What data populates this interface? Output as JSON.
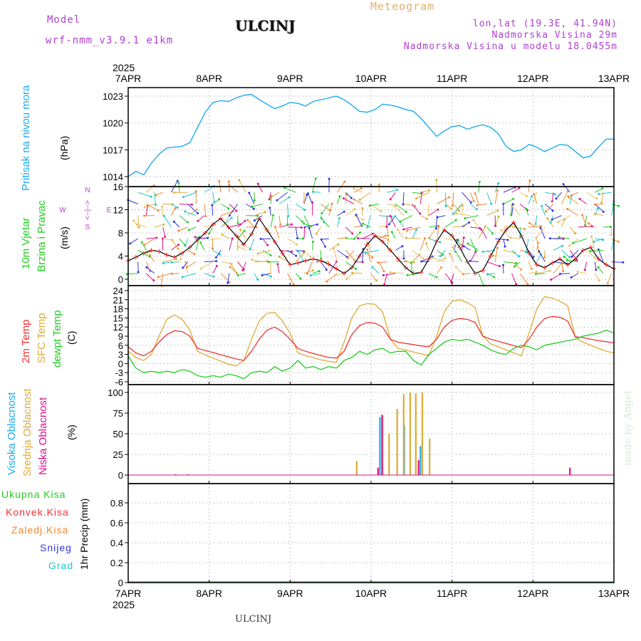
{
  "header": {
    "model_label": "Model",
    "model_name": "wrf-nmm_v3.9.1  e1km",
    "station": "ULCINJ",
    "title": "Meteogram",
    "lonlat": "lon,lat (19.3E, 41.94N)",
    "elevation": "Nadmorska Visina 29m",
    "model_elevation": "Nadmorska Visina u modelu 18.0455m"
  },
  "footer": {
    "station": "ULCINJ",
    "credit": "made by Angel"
  },
  "colors": {
    "pressure": "#1eaaee",
    "temp2m": "#ee3333",
    "sfc": "#e0aa33",
    "dewpt": "#22cc22",
    "wind_green": "#22cc22",
    "purple": "#b040d0",
    "cyan": "#22c8c8",
    "magenta": "#dd1188",
    "blue": "#3333dd",
    "orange": "#ee8833"
  },
  "chart_data": [
    {
      "type": "line",
      "ylabel": "Pritisak na nivou mora",
      "unit": "(hPa)",
      "x_ticks": [
        "7APR",
        "8APR",
        "9APR",
        "10APR",
        "11APR",
        "12APR",
        "13APR"
      ],
      "year": "2025",
      "yticks": [
        "1014",
        "1017",
        "1020",
        "1023"
      ],
      "ylim": [
        1013.4,
        1023.5
      ],
      "grid": true,
      "series": [
        {
          "values": [
            1014.0,
            1014.6,
            1014.2,
            1015.5,
            1016.5,
            1017.2,
            1017.3,
            1017.4,
            1017.8,
            1019.5,
            1021.2,
            1022.3,
            1022.5,
            1022.4,
            1022.8,
            1023.1,
            1023.2,
            1022.6,
            1022.1,
            1021.6,
            1021.9,
            1022.3,
            1022.2,
            1021.9,
            1022.4,
            1022.6,
            1022.8,
            1023.0,
            1022.6,
            1022.0,
            1021.3,
            1021.2,
            1021.5,
            1022.1,
            1022.0,
            1021.8,
            1021.5,
            1021.3,
            1020.5,
            1019.5,
            1018.5,
            1019.1,
            1019.6,
            1019.7,
            1019.3,
            1019.6,
            1019.8,
            1019.5,
            1018.8,
            1017.4,
            1016.8,
            1017.0,
            1017.6,
            1017.3,
            1016.8,
            1017.2,
            1017.6,
            1017.5,
            1016.8,
            1016.1,
            1016.3,
            1017.3,
            1018.2,
            1018.2
          ]
        }
      ]
    },
    {
      "type": "line",
      "ylabel": [
        "10m Vjetar",
        "Brzina i Pravac"
      ],
      "unit": "(m/s)",
      "compass": [
        "N",
        "W",
        "<--|-->",
        "E",
        "S"
      ],
      "yticks": [
        "0",
        "4",
        "8",
        "12",
        "16"
      ],
      "ylim": [
        0,
        16
      ],
      "grid": true,
      "series": [
        {
          "values": [
            3.2,
            3.8,
            4.5,
            5.0,
            4.8,
            4.2,
            3.8,
            4.5,
            5.5,
            6.8,
            8.0,
            9.5,
            10.5,
            9.0,
            7.5,
            6.0,
            7.8,
            10.5,
            8.5,
            6.5,
            4.5,
            2.5,
            2.8,
            3.2,
            3.5,
            3.2,
            2.6,
            1.8,
            1.0,
            2.0,
            4.0,
            6.0,
            7.5,
            6.5,
            5.0,
            3.5,
            2.0,
            1.0,
            1.2,
            3.5,
            6.5,
            8.5,
            7.5,
            5.5,
            3.0,
            1.0,
            1.5,
            4.0,
            6.5,
            8.5,
            9.8,
            7.5,
            4.5,
            2.5,
            2.0,
            2.8,
            3.5,
            2.5,
            3.5,
            5.0,
            5.5,
            3.5,
            2.5,
            1.8
          ]
        }
      ]
    },
    {
      "type": "line",
      "ylabel": [
        "2m Temp",
        "SFC Temp",
        "dewpt Temp"
      ],
      "unit": "(C)",
      "yticks": [
        "-6",
        "-3",
        "0",
        "3",
        "6",
        "9",
        "12",
        "15",
        "18",
        "21",
        "24"
      ],
      "ylim": [
        -6,
        24
      ],
      "grid": true,
      "series": [
        {
          "name": "2m Temp",
          "values": [
            5.5,
            3.5,
            2.5,
            4.0,
            7.0,
            9.5,
            10.8,
            10.5,
            9.0,
            5.0,
            4.3,
            3.6,
            2.9,
            2.2,
            1.5,
            1.0,
            4.0,
            8.0,
            11.0,
            12.0,
            10.5,
            8.0,
            5.0,
            4.0,
            3.3,
            2.6,
            2.0,
            1.8,
            4.0,
            9.5,
            12.5,
            13.5,
            13.3,
            12.0,
            8.0,
            7.0,
            6.6,
            6.2,
            5.8,
            5.5,
            8.0,
            12.0,
            14.2,
            14.8,
            14.5,
            13.5,
            9.0,
            8.0,
            7.3,
            6.6,
            5.9,
            5.2,
            8.0,
            12.0,
            14.8,
            15.5,
            15.2,
            14.0,
            8.8,
            8.5,
            8.0,
            7.5,
            7.2,
            6.8
          ]
        },
        {
          "name": "SFC Temp",
          "values": [
            4.0,
            2.0,
            1.0,
            3.0,
            9.0,
            14.5,
            16.0,
            14.5,
            11.0,
            4.0,
            2.8,
            1.8,
            0.8,
            -0.2,
            -0.8,
            1.0,
            8.0,
            14.0,
            16.5,
            16.8,
            14.0,
            10.0,
            3.5,
            2.6,
            1.9,
            1.2,
            0.7,
            0.4,
            7.0,
            15.0,
            19.0,
            19.7,
            19.5,
            17.0,
            8.0,
            5.0,
            4.4,
            3.8,
            3.2,
            2.6,
            9.0,
            17.0,
            20.5,
            21.0,
            20.0,
            18.5,
            9.0,
            6.5,
            5.5,
            4.5,
            3.5,
            2.5,
            10.0,
            18.0,
            22.0,
            21.5,
            20.5,
            19.0,
            8.5,
            7.0,
            6.0,
            5.0,
            4.0,
            3.5
          ]
        },
        {
          "name": "dewpt Temp",
          "values": [
            2.5,
            -1.5,
            -3.0,
            -2.5,
            -3.0,
            -2.5,
            -3.0,
            -2.0,
            -2.5,
            -4.0,
            -4.5,
            -4.0,
            -4.5,
            -3.5,
            -4.0,
            -5.0,
            -3.0,
            -2.5,
            -3.0,
            -1.0,
            -2.5,
            -1.5,
            1.0,
            -1.5,
            -1.0,
            -2.0,
            -1.0,
            -1.5,
            1.0,
            2.0,
            4.0,
            3.0,
            4.5,
            5.0,
            3.5,
            4.0,
            4.0,
            1.0,
            -0.5,
            3.0,
            5.0,
            7.0,
            8.0,
            7.5,
            8.0,
            7.0,
            6.0,
            4.5,
            3.5,
            3.0,
            5.0,
            6.0,
            5.5,
            4.5,
            6.0,
            6.5,
            7.0,
            7.5,
            8.0,
            9.0,
            9.5,
            10.0,
            11.0,
            10.0
          ]
        }
      ]
    },
    {
      "type": "bar",
      "ylabel": [
        "Visoka Oblacnost",
        "Srednja Oblacnost",
        "Niska Oblacnost"
      ],
      "unit": "(%)",
      "yticks": [
        "0",
        "25",
        "50",
        "75",
        "100"
      ],
      "ylim": [
        0,
        100
      ],
      "grid": true,
      "series": [
        {
          "name": "Visoka Oblacnost",
          "bars": [
            [
              3.1,
              70
            ],
            [
              3.4,
              60
            ],
            [
              3.6,
              35
            ]
          ]
        },
        {
          "name": "Srednja Oblacnost",
          "bars": [
            [
              2.8,
              17
            ],
            [
              3.12,
              72
            ],
            [
              3.2,
              50
            ],
            [
              3.3,
              80
            ],
            [
              3.38,
              98
            ],
            [
              3.46,
              100
            ],
            [
              3.53,
              99
            ],
            [
              3.61,
              100
            ],
            [
              3.7,
              44
            ]
          ]
        },
        {
          "name": "Niska Oblacnost",
          "bars": [
            [
              3.1,
              73
            ],
            [
              3.55,
              18
            ],
            [
              5.42,
              9
            ],
            [
              3.05,
              9
            ],
            [
              0.55,
              1
            ],
            [
              0.7,
              1
            ]
          ]
        }
      ]
    },
    {
      "type": "line",
      "ylabel": [
        "Ukupna Kisa",
        "Konvek.Kisa",
        "Zaledj.Kisa",
        "Snijeg",
        "Grad"
      ],
      "unit": "1hr Precip (mm)",
      "yticks": [
        "0",
        "0.2",
        "0.4",
        "0.6",
        "0.8"
      ],
      "ylim": [
        0,
        1.0
      ],
      "grid": true,
      "x_ticks": [
        "7APR",
        "8APR",
        "9APR",
        "10APR",
        "11APR",
        "12APR",
        "13APR"
      ],
      "year": "2025",
      "series": [
        {
          "name": "Ukupna Kisa",
          "values": [
            0,
            0,
            0,
            0,
            0,
            0,
            0
          ]
        }
      ]
    }
  ]
}
